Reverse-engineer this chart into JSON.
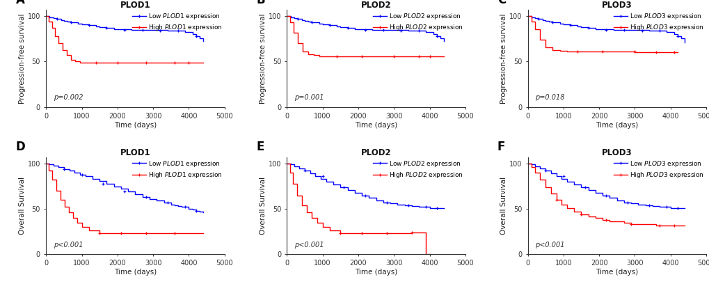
{
  "panels": [
    {
      "label": "A",
      "title": "PLOD1",
      "pvalue": "p=0.002",
      "ylabel": "Progression-free survival",
      "low_color": "#0000FF",
      "high_color": "#FF0000",
      "low_label": "Low PLOD1 expression",
      "high_label": "High PLOD1 expression",
      "low_times": [
        0,
        50,
        100,
        150,
        200,
        280,
        350,
        420,
        500,
        600,
        700,
        800,
        900,
        1000,
        1100,
        1200,
        1300,
        1400,
        1500,
        1600,
        1700,
        1800,
        1900,
        2000,
        2200,
        2400,
        2600,
        2800,
        3000,
        3200,
        3400,
        3600,
        3700,
        3800,
        3900,
        4000,
        4100,
        4200,
        4300,
        4400
      ],
      "low_surv": [
        100,
        100,
        99,
        99,
        98,
        97,
        97,
        96,
        95,
        94,
        93,
        93,
        92,
        91,
        91,
        90,
        90,
        89,
        88,
        88,
        87,
        87,
        86,
        86,
        86,
        85,
        85,
        85,
        85,
        85,
        84,
        84,
        84,
        84,
        83,
        83,
        80,
        78,
        76,
        73
      ],
      "high_times": [
        0,
        80,
        160,
        240,
        350,
        460,
        580,
        700,
        820,
        950,
        1050,
        1150,
        1250,
        1400,
        1600,
        1800,
        2000,
        2200,
        2500,
        2800,
        3200,
        3600,
        4000,
        4400
      ],
      "high_surv": [
        100,
        94,
        87,
        78,
        70,
        63,
        57,
        52,
        50,
        49,
        49,
        49,
        49,
        49,
        49,
        49,
        49,
        49,
        49,
        49,
        49,
        49,
        49,
        49
      ],
      "low_censor_t": [
        300,
        700,
        1200,
        1700,
        2200,
        2700,
        3200,
        3700,
        4200
      ],
      "low_censor_s": [
        97,
        93,
        90,
        87,
        85,
        85,
        84,
        84,
        78
      ],
      "high_censor_t": [
        1400,
        2000,
        2800,
        3600,
        4000
      ],
      "high_censor_s": [
        49,
        49,
        49,
        49,
        49
      ]
    },
    {
      "label": "B",
      "title": "PLOD2",
      "pvalue": "p=0.001",
      "ylabel": "Progression-free survival",
      "low_color": "#0000FF",
      "high_color": "#FF0000",
      "low_label": "Low PLOD2 expression",
      "high_label": "High PLOD2 expression",
      "low_times": [
        0,
        50,
        100,
        150,
        200,
        280,
        350,
        420,
        500,
        600,
        700,
        800,
        900,
        1000,
        1100,
        1200,
        1300,
        1400,
        1500,
        1600,
        1700,
        1800,
        1900,
        2000,
        2200,
        2400,
        2600,
        2800,
        3000,
        3200,
        3400,
        3600,
        3700,
        3800,
        3900,
        4000,
        4100,
        4200,
        4300,
        4400
      ],
      "low_surv": [
        100,
        100,
        99,
        99,
        98,
        97,
        97,
        96,
        95,
        94,
        93,
        93,
        92,
        91,
        91,
        90,
        90,
        89,
        88,
        88,
        87,
        87,
        86,
        86,
        86,
        85,
        85,
        85,
        85,
        85,
        84,
        84,
        84,
        84,
        83,
        83,
        80,
        78,
        76,
        73
      ],
      "high_times": [
        0,
        80,
        180,
        300,
        450,
        600,
        750,
        900,
        1050,
        1200,
        1500,
        1800,
        2100,
        2400,
        2800,
        3200,
        3600,
        4000,
        4400
      ],
      "high_surv": [
        100,
        93,
        82,
        70,
        61,
        58,
        57,
        56,
        56,
        56,
        56,
        56,
        56,
        56,
        56,
        56,
        56,
        56,
        56
      ],
      "low_censor_t": [
        300,
        700,
        1200,
        1700,
        2200,
        2700,
        3200,
        3700,
        4200
      ],
      "low_censor_s": [
        97,
        93,
        90,
        87,
        85,
        85,
        84,
        84,
        78
      ],
      "high_censor_t": [
        1400,
        2100,
        3000,
        3700,
        4000
      ],
      "high_censor_s": [
        56,
        56,
        56,
        56,
        56
      ]
    },
    {
      "label": "C",
      "title": "PLOD3",
      "pvalue": "p=0.018",
      "ylabel": "Progression-free survival",
      "low_color": "#0000FF",
      "high_color": "#FF0000",
      "low_label": "Low PLOD3 expression",
      "high_label": "High PLOD3 expression",
      "low_times": [
        0,
        50,
        100,
        150,
        200,
        280,
        350,
        420,
        500,
        600,
        700,
        800,
        900,
        1000,
        1100,
        1200,
        1300,
        1400,
        1500,
        1600,
        1700,
        1800,
        1900,
        2000,
        2200,
        2400,
        2600,
        2800,
        3000,
        3200,
        3400,
        3600,
        3700,
        3800,
        3900,
        4000,
        4100,
        4200,
        4300,
        4400
      ],
      "low_surv": [
        100,
        100,
        99,
        99,
        98,
        97,
        97,
        96,
        95,
        94,
        93,
        93,
        92,
        91,
        91,
        90,
        90,
        89,
        88,
        88,
        87,
        87,
        86,
        86,
        86,
        85,
        85,
        85,
        85,
        85,
        84,
        84,
        84,
        84,
        83,
        83,
        80,
        78,
        76,
        71
      ],
      "high_times": [
        0,
        100,
        200,
        350,
        500,
        700,
        900,
        1100,
        1400,
        1700,
        2100,
        2400,
        2700,
        3000,
        3500,
        3800,
        4200
      ],
      "high_surv": [
        100,
        94,
        86,
        74,
        66,
        63,
        62,
        61,
        61,
        61,
        61,
        61,
        61,
        60,
        60,
        60,
        60
      ],
      "low_censor_t": [
        300,
        700,
        1200,
        1700,
        2200,
        2700,
        3200,
        3700,
        4200
      ],
      "low_censor_s": [
        97,
        93,
        90,
        87,
        85,
        85,
        84,
        84,
        78
      ],
      "high_censor_t": [
        1400,
        2100,
        3000,
        3600,
        4100
      ],
      "high_censor_s": [
        61,
        61,
        61,
        60,
        60
      ]
    },
    {
      "label": "D",
      "title": "PLOD1",
      "pvalue": "p<0.001",
      "ylabel": "Overall Survival",
      "low_color": "#0000FF",
      "high_color": "#FF0000",
      "low_label": "Low PLOD1 expression",
      "high_label": "High PLOD1 expression",
      "low_times": [
        0,
        100,
        200,
        350,
        500,
        650,
        800,
        950,
        1100,
        1300,
        1500,
        1700,
        1900,
        2100,
        2300,
        2500,
        2700,
        2900,
        3100,
        3300,
        3500,
        3600,
        3700,
        3800,
        3900,
        4000,
        4100,
        4200,
        4300,
        4400
      ],
      "low_surv": [
        100,
        99,
        98,
        96,
        94,
        92,
        90,
        88,
        86,
        83,
        81,
        78,
        75,
        72,
        69,
        66,
        63,
        61,
        59,
        57,
        55,
        54,
        53,
        52,
        52,
        50,
        49,
        48,
        47,
        46
      ],
      "high_times": [
        0,
        80,
        160,
        280,
        400,
        520,
        640,
        760,
        880,
        1000,
        1200,
        1500,
        1800,
        2100,
        2400,
        2600,
        2800,
        3000,
        3200,
        3600,
        4000,
        4400
      ],
      "high_surv": [
        100,
        92,
        82,
        70,
        60,
        52,
        46,
        40,
        35,
        30,
        26,
        23,
        23,
        23,
        23,
        23,
        23,
        23,
        23,
        23,
        23,
        23
      ],
      "low_censor_t": [
        500,
        1000,
        1600,
        2200,
        2800,
        3400,
        3900,
        4200
      ],
      "low_censor_s": [
        94,
        88,
        78,
        69,
        63,
        57,
        52,
        48
      ],
      "high_censor_t": [
        1500,
        2100,
        2800,
        3600
      ],
      "high_censor_s": [
        23,
        23,
        23,
        23
      ]
    },
    {
      "label": "E",
      "title": "PLOD2",
      "pvalue": "p<0.001",
      "ylabel": "Overall Survival",
      "low_color": "#0000FF",
      "high_color": "#FF0000",
      "low_label": "Low PLOD2 expression",
      "high_label": "High PLOD2 expression",
      "low_times": [
        0,
        100,
        200,
        350,
        500,
        650,
        800,
        950,
        1100,
        1300,
        1500,
        1700,
        1900,
        2100,
        2300,
        2500,
        2700,
        2900,
        3100,
        3300,
        3500,
        3600,
        3700,
        3800,
        3900,
        4000,
        4100,
        4200,
        4300,
        4400
      ],
      "low_surv": [
        100,
        99,
        97,
        95,
        92,
        89,
        86,
        83,
        80,
        77,
        74,
        71,
        68,
        65,
        62,
        59,
        57,
        56,
        55,
        54,
        53,
        53,
        52,
        52,
        52,
        51,
        51,
        51,
        51,
        51
      ],
      "high_times": [
        0,
        80,
        160,
        280,
        420,
        560,
        700,
        850,
        1000,
        1200,
        1500,
        1700,
        1900,
        2100,
        2300,
        2600,
        2900,
        3200,
        3500,
        3600,
        3700,
        3800,
        3900,
        4000
      ],
      "high_surv": [
        100,
        90,
        78,
        65,
        54,
        46,
        40,
        35,
        30,
        26,
        23,
        23,
        23,
        23,
        23,
        23,
        23,
        23,
        24,
        24,
        24,
        24,
        0,
        0
      ],
      "low_censor_t": [
        500,
        1000,
        1600,
        2200,
        2800,
        3400,
        3900,
        4200
      ],
      "low_censor_s": [
        92,
        86,
        74,
        65,
        57,
        54,
        52,
        51
      ],
      "high_censor_t": [
        1500,
        2100,
        2800,
        3500
      ],
      "high_censor_s": [
        23,
        23,
        23,
        24
      ]
    },
    {
      "label": "F",
      "title": "PLOD3",
      "pvalue": "p<0.001",
      "ylabel": "Overall Survival",
      "low_color": "#0000FF",
      "high_color": "#FF0000",
      "low_label": "Low PLOD3 expression",
      "high_label": "High PLOD3 expression",
      "low_times": [
        0,
        100,
        200,
        350,
        500,
        650,
        800,
        950,
        1100,
        1300,
        1500,
        1700,
        1900,
        2100,
        2300,
        2500,
        2700,
        2900,
        3100,
        3300,
        3500,
        3600,
        3700,
        3800,
        3900,
        4000,
        4100,
        4200,
        4300,
        4400
      ],
      "low_surv": [
        100,
        99,
        97,
        95,
        92,
        89,
        86,
        83,
        80,
        77,
        74,
        71,
        68,
        65,
        62,
        59,
        57,
        56,
        55,
        54,
        53,
        53,
        52,
        52,
        52,
        51,
        51,
        51,
        51,
        51
      ],
      "high_times": [
        0,
        100,
        200,
        350,
        500,
        650,
        800,
        950,
        1100,
        1300,
        1500,
        1700,
        1900,
        2100,
        2300,
        2500,
        2700,
        2900,
        3100,
        3300,
        3500,
        3600,
        3700,
        3800,
        3900,
        4000,
        4100,
        4200,
        4300,
        4400
      ],
      "high_surv": [
        100,
        96,
        90,
        82,
        74,
        67,
        60,
        55,
        51,
        47,
        44,
        42,
        40,
        38,
        36,
        36,
        35,
        33,
        33,
        33,
        33,
        32,
        32,
        32,
        32,
        32,
        32,
        32,
        32,
        32
      ],
      "low_censor_t": [
        500,
        1000,
        1600,
        2200,
        2800,
        3400,
        3900,
        4200
      ],
      "low_censor_s": [
        92,
        86,
        74,
        65,
        57,
        54,
        52,
        51
      ],
      "high_censor_t": [
        800,
        1500,
        2200,
        2900,
        3700,
        4100
      ],
      "high_censor_s": [
        60,
        44,
        38,
        33,
        32,
        32
      ]
    }
  ],
  "xlim": [
    0,
    5000
  ],
  "xticks": [
    0,
    1000,
    2000,
    3000,
    4000,
    5000
  ],
  "ylim": [
    0,
    107
  ],
  "yticks": [
    0,
    50,
    100
  ],
  "xlabel": "Time (days)",
  "bg_color": "#FFFFFF",
  "spine_color": "#333333",
  "tick_color": "#333333",
  "tick_fontsize": 7,
  "title_fontsize": 8.5,
  "axis_label_fontsize": 7.5,
  "legend_fontsize": 6.5,
  "pvalue_fontsize": 7,
  "panel_label_fontsize": 12,
  "line_width": 1.0,
  "censor_marker_size": 3.5
}
